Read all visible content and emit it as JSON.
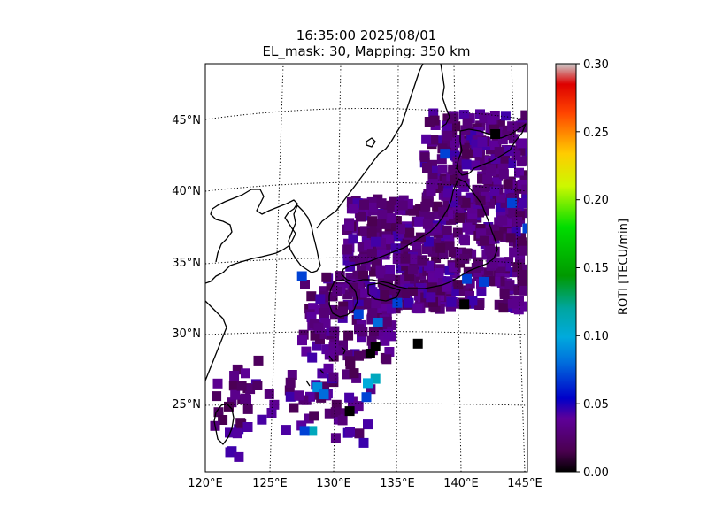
{
  "chart_data": {
    "type": "heatmap",
    "title_line1": "16:35:00 2025/08/01",
    "title_line2": "EL_mask: 30, Mapping: 350 km",
    "map": {
      "lon_range": [
        120,
        145
      ],
      "lat_range": [
        20,
        49
      ],
      "lon_ticks": [
        "120°E",
        "125°E",
        "130°E",
        "135°E",
        "140°E",
        "145°E"
      ],
      "lat_ticks": [
        "25°N",
        "30°N",
        "35°N",
        "40°N",
        "45°N"
      ],
      "graticule": "dotted",
      "coastline_color": "#000000"
    },
    "colorbar": {
      "label": "ROTI [TECU/min]",
      "range": [
        0.0,
        0.3
      ],
      "ticks": [
        "0.00",
        "0.05",
        "0.10",
        "0.15",
        "0.20",
        "0.25",
        "0.30"
      ],
      "colormap": "nipy_spectral"
    },
    "points": [
      {
        "lon": 127.5,
        "lat": 33.9,
        "roti": 0.07
      },
      {
        "lon": 131.9,
        "lat": 31.2,
        "roti": 0.07
      },
      {
        "lon": 133.4,
        "lat": 30.6,
        "roti": 0.08
      },
      {
        "lon": 128.7,
        "lat": 26.0,
        "roti": 0.09
      },
      {
        "lon": 129.2,
        "lat": 25.5,
        "roti": 0.08
      },
      {
        "lon": 133.2,
        "lat": 26.6,
        "roti": 0.11
      },
      {
        "lon": 132.6,
        "lat": 26.3,
        "roti": 0.1
      },
      {
        "lon": 132.5,
        "lat": 25.3,
        "roti": 0.07
      },
      {
        "lon": 128.3,
        "lat": 22.9,
        "roti": 0.11
      },
      {
        "lon": 127.7,
        "lat": 22.9,
        "roti": 0.07
      },
      {
        "lon": 136.5,
        "lat": 29.1,
        "roti": 0.0
      },
      {
        "lon": 131.2,
        "lat": 24.3,
        "roti": 0.0
      },
      {
        "lon": 132.8,
        "lat": 28.4,
        "roti": 0.0
      },
      {
        "lon": 143.8,
        "lat": 39.1,
        "roti": 0.07
      },
      {
        "lon": 145.0,
        "lat": 37.3,
        "roti": 0.07
      },
      {
        "lon": 141.6,
        "lat": 33.5,
        "roti": 0.07
      },
      {
        "lon": 138.6,
        "lat": 42.6,
        "roti": 0.07
      },
      {
        "lon": 140.3,
        "lat": 33.7,
        "roti": 0.07
      },
      {
        "lon": 134.9,
        "lat": 32.0,
        "roti": 0.07
      },
      {
        "lon": 140.1,
        "lat": 31.9,
        "roti": 0.0
      },
      {
        "lon": 142.5,
        "lat": 44.0,
        "roti": 0.0
      },
      {
        "lon": 133.2,
        "lat": 28.9,
        "roti": 0.0
      }
    ]
  }
}
